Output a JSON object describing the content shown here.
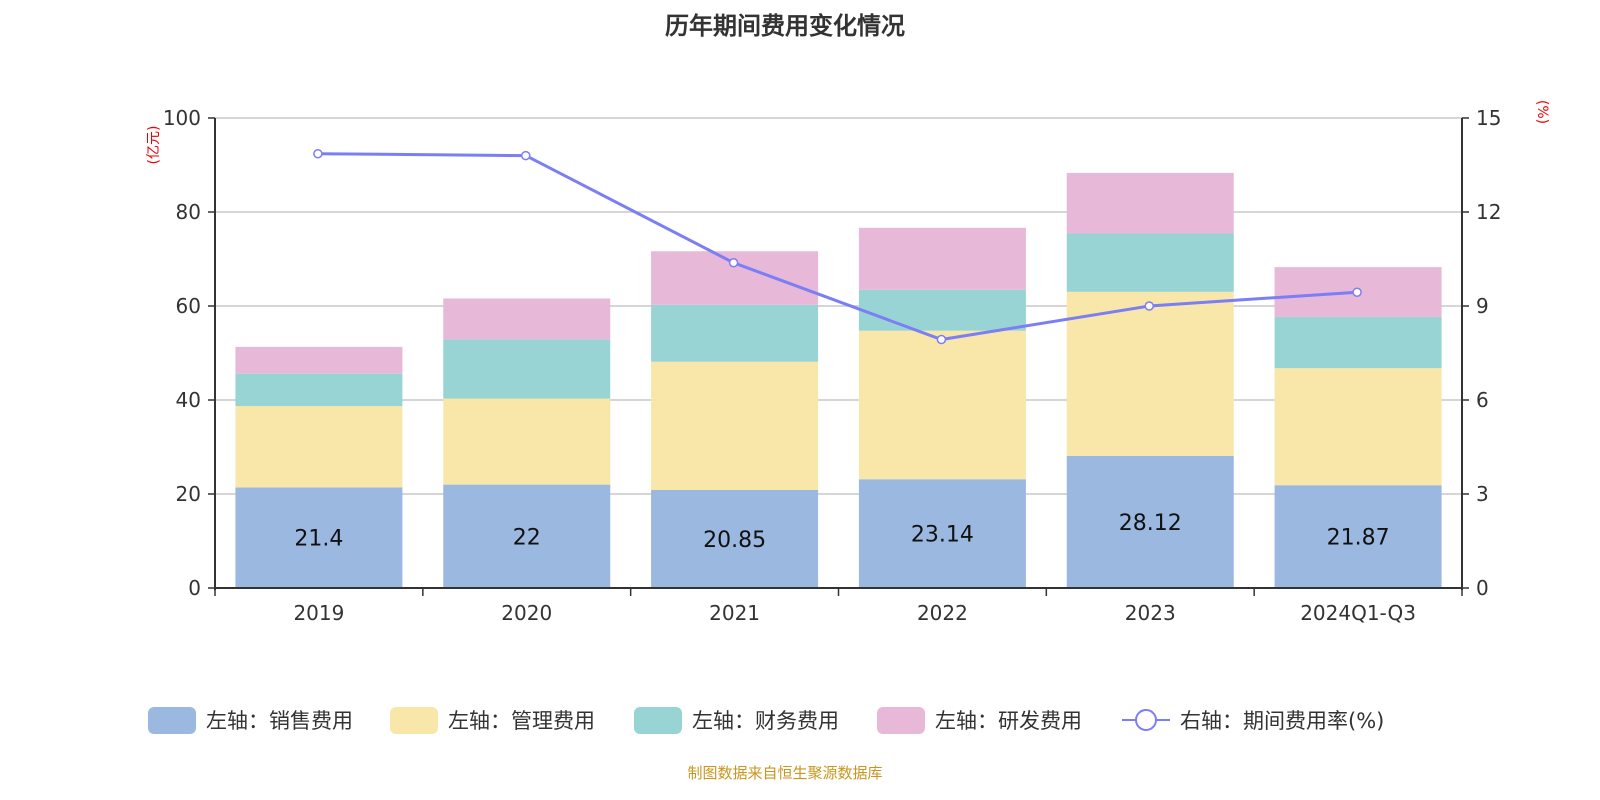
{
  "title": "历年期间费用变化情况",
  "source": "制图数据来自恒生聚源数据库",
  "chart_data": {
    "type": "bar",
    "stacked": true,
    "title": "历年期间费用变化情况",
    "categories": [
      "2019",
      "2020",
      "2021",
      "2022",
      "2023",
      "2024Q1-Q3"
    ],
    "left_axis": {
      "unit": "(亿元)",
      "ylim": [
        0,
        100
      ],
      "ticks": [
        0,
        20,
        40,
        60,
        80,
        100
      ]
    },
    "right_axis": {
      "unit": "(%)",
      "ylim": [
        0,
        15
      ],
      "ticks": [
        0,
        3,
        6,
        9,
        12,
        15
      ]
    },
    "grid": true,
    "legend_position": "bottom",
    "series": [
      {
        "name": "左轴：销售费用",
        "type": "bar",
        "axis": "left",
        "color": "#9bb8e0",
        "values": [
          21.4,
          22,
          20.85,
          23.14,
          28.12,
          21.87
        ],
        "labels": [
          "21.4",
          "22",
          "20.85",
          "23.14",
          "28.12",
          "21.87"
        ]
      },
      {
        "name": "左轴：管理费用",
        "type": "bar",
        "axis": "left",
        "color": "#f8e7a9",
        "values": [
          17.3,
          18.3,
          27.3,
          31.6,
          34.9,
          24.9
        ]
      },
      {
        "name": "左轴：财务费用",
        "type": "bar",
        "axis": "left",
        "color": "#98d4d4",
        "values": [
          6.9,
          12.6,
          12.1,
          8.7,
          12.4,
          10.9
        ]
      },
      {
        "name": "左轴：研发费用",
        "type": "bar",
        "axis": "left",
        "color": "#e8b8d8",
        "values": [
          5.7,
          8.7,
          11.4,
          13.2,
          12.9,
          10.6
        ]
      },
      {
        "name": "右轴：期间费用率(%)",
        "type": "line",
        "axis": "right",
        "color": "#7b7ef5",
        "values": [
          13.86,
          13.8,
          10.38,
          7.93,
          9.0,
          9.44
        ]
      }
    ]
  }
}
